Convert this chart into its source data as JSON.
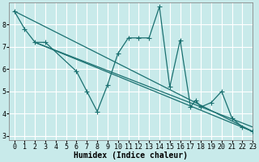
{
  "title": "",
  "xlabel": "Humidex (Indice chaleur)",
  "ylabel": "",
  "bg_color": "#c8eaea",
  "grid_color": "#ffffff",
  "line_color": "#1a7070",
  "marker": "+",
  "markersize": 4,
  "linewidth": 0.9,
  "xlim": [
    -0.5,
    23
  ],
  "ylim": [
    2.8,
    9.0
  ],
  "xticks": [
    0,
    1,
    2,
    3,
    4,
    5,
    6,
    7,
    8,
    9,
    10,
    11,
    12,
    13,
    14,
    15,
    16,
    17,
    18,
    19,
    20,
    21,
    22,
    23
  ],
  "yticks": [
    3,
    4,
    5,
    6,
    7,
    8
  ],
  "series": [
    {
      "x": [
        0,
        1,
        2,
        3,
        6,
        7,
        8,
        9,
        10,
        11,
        12,
        13,
        14,
        15,
        16,
        17,
        17.5,
        18,
        19,
        20,
        21,
        22,
        23
      ],
      "y": [
        8.6,
        7.8,
        7.2,
        7.2,
        5.9,
        5.0,
        4.1,
        5.3,
        6.7,
        7.4,
        7.4,
        7.4,
        8.8,
        5.2,
        7.3,
        4.3,
        4.6,
        4.3,
        4.5,
        5.0,
        3.8,
        3.4,
        3.2
      ],
      "has_marker": true
    },
    {
      "x": [
        0,
        23
      ],
      "y": [
        8.6,
        3.2
      ],
      "has_marker": false
    },
    {
      "x": [
        2,
        23
      ],
      "y": [
        7.2,
        3.2
      ],
      "has_marker": false
    },
    {
      "x": [
        2,
        23
      ],
      "y": [
        7.2,
        3.4
      ],
      "has_marker": false
    }
  ],
  "tick_fontsize": 6,
  "xlabel_fontsize": 7,
  "figsize": [
    3.2,
    2.0
  ],
  "dpi": 100
}
